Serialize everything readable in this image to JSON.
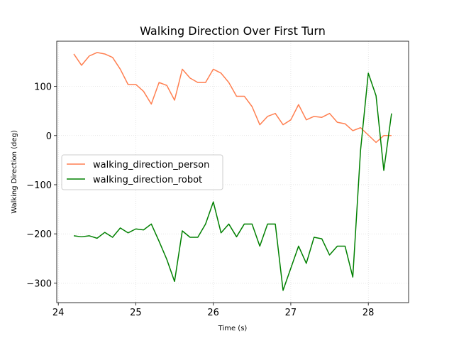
{
  "chart_data": {
    "type": "line",
    "title": "Walking Direction Over First Turn",
    "xlabel": "Time (s)",
    "ylabel": "Walking Direction (deg)",
    "xlim": [
      23.98,
      28.52
    ],
    "ylim": [
      -340,
      192
    ],
    "xticks": [
      24,
      25,
      26,
      27,
      28
    ],
    "yticks": [
      -300,
      -200,
      -100,
      0,
      100
    ],
    "xtick_labels": [
      "24",
      "25",
      "26",
      "27",
      "28"
    ],
    "ytick_labels": [
      "−300",
      "−200",
      "−100",
      "0",
      "100"
    ],
    "grid": true,
    "legend_position": "center-left",
    "x": [
      24.2,
      24.3,
      24.4,
      24.5,
      24.6,
      24.7,
      24.8,
      24.9,
      25.0,
      25.1,
      25.2,
      25.3,
      25.4,
      25.5,
      25.6,
      25.7,
      25.8,
      25.9,
      26.0,
      26.1,
      26.2,
      26.3,
      26.4,
      26.5,
      26.6,
      26.7,
      26.8,
      26.9,
      27.0,
      27.1,
      27.2,
      27.3,
      27.4,
      27.5,
      27.6,
      27.7,
      27.8,
      27.9,
      28.0,
      28.1,
      28.2,
      28.3
    ],
    "series": [
      {
        "name": "walking_direction_person",
        "color": "#ff7f50",
        "values": [
          166,
          143,
          162,
          169,
          166,
          159,
          135,
          104,
          104,
          90,
          64,
          108,
          102,
          72,
          135,
          117,
          108,
          108,
          135,
          127,
          108,
          80,
          80,
          59,
          22,
          39,
          45,
          22,
          32,
          63,
          32,
          39,
          37,
          45,
          27,
          24,
          10,
          16,
          1,
          -14,
          0,
          0
        ]
      },
      {
        "name": "walking_direction_robot",
        "color": "#008000",
        "values": [
          -204,
          -206,
          -204,
          -209,
          -197,
          -207,
          -188,
          -198,
          -190,
          -192,
          -180,
          -215,
          -252,
          -297,
          -194,
          -207,
          -207,
          -180,
          -135,
          -198,
          -180,
          -206,
          -180,
          -180,
          -225,
          -180,
          -180,
          -315,
          -270,
          -225,
          -260,
          -207,
          -210,
          -243,
          -225,
          -225,
          -288,
          -30,
          127,
          81,
          -71,
          45
        ]
      }
    ]
  }
}
